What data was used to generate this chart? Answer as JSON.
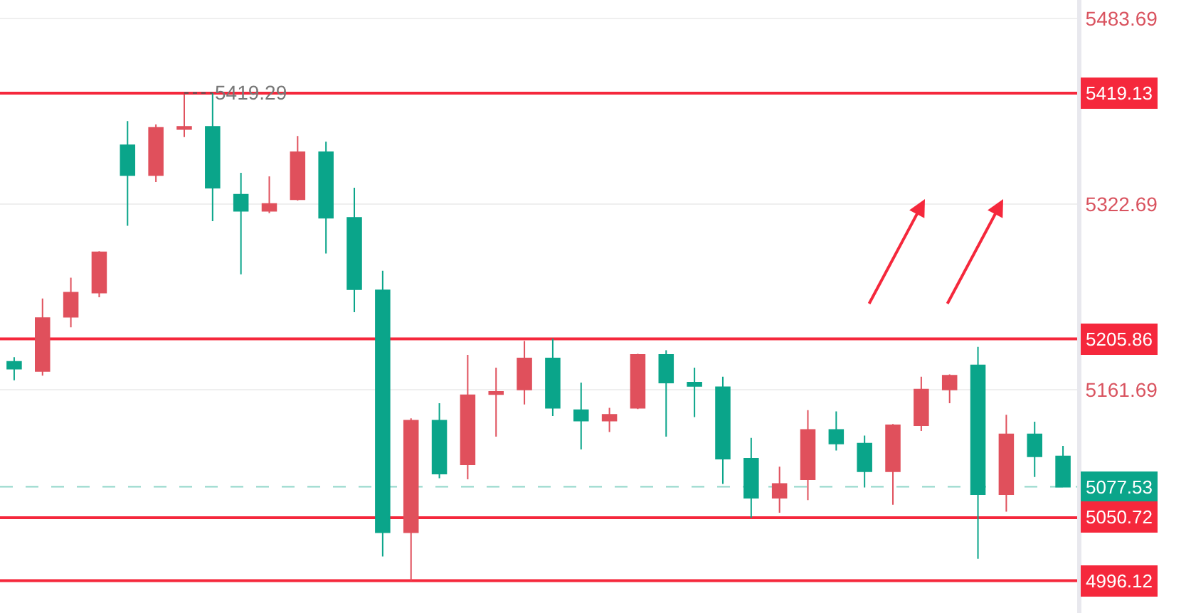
{
  "chart_data": {
    "type": "candlestick",
    "categories": [
      null,
      null,
      null,
      null,
      null,
      null,
      null,
      null,
      null,
      null,
      null,
      null,
      null,
      null,
      null,
      null,
      null,
      null,
      null,
      null,
      null,
      null,
      null,
      null,
      null,
      null,
      null,
      null,
      null,
      null,
      null,
      null,
      null,
      null,
      null,
      null,
      null,
      null
    ],
    "ohlc": [
      [
        5186,
        5190,
        5170,
        5180
      ],
      [
        5178,
        5241,
        5174,
        5224
      ],
      [
        5225,
        5259,
        5216,
        5246
      ],
      [
        5246,
        5282,
        5242,
        5281
      ],
      [
        5374,
        5395,
        5304,
        5348
      ],
      [
        5348,
        5392,
        5342,
        5389
      ],
      [
        5388,
        5418,
        5381,
        5390
      ],
      [
        5390,
        5419.29,
        5308,
        5337
      ],
      [
        5331,
        5350,
        5262,
        5317
      ],
      [
        5317,
        5347,
        5315,
        5323
      ],
      [
        5327,
        5382,
        5326,
        5368
      ],
      [
        5368,
        5377,
        5280,
        5311
      ],
      [
        5311,
        5337,
        5229,
        5249
      ],
      [
        5248,
        5265,
        5017,
        5038
      ],
      [
        5038,
        5137,
        4996.12,
        5135
      ],
      [
        5135,
        5150,
        5085,
        5089
      ],
      [
        5097,
        5192,
        5084,
        5157
      ],
      [
        5158,
        5181,
        5121,
        5160
      ],
      [
        5162,
        5204,
        5149,
        5189
      ],
      [
        5189,
        5206,
        5139,
        5146
      ],
      [
        5144,
        5168,
        5110,
        5135
      ],
      [
        5135,
        5146,
        5125,
        5140
      ],
      [
        5146,
        5193,
        5145,
        5192
      ],
      [
        5192,
        5196,
        5121,
        5168
      ],
      [
        5168,
        5181,
        5138,
        5165
      ],
      [
        5164,
        5173,
        5080,
        5102
      ],
      [
        5102,
        5120,
        5050.72,
        5068
      ],
      [
        5068,
        5095,
        5055,
        5080
      ],
      [
        5084,
        5144,
        5066,
        5127
      ],
      [
        5127,
        5143,
        5109,
        5115
      ],
      [
        5115,
        5122,
        5077,
        5091
      ],
      [
        5091,
        5132,
        5062,
        5131
      ],
      [
        5131,
        5173,
        5126,
        5162
      ],
      [
        5162,
        5175,
        5150,
        5174
      ],
      [
        5183,
        5199,
        5015,
        5071
      ],
      [
        5071,
        5140,
        5056,
        5123
      ],
      [
        5123,
        5134,
        5086,
        5104
      ],
      [
        5104,
        5113,
        5077,
        5077.53
      ]
    ],
    "colors": [
      "#0aa58a",
      "#e0505c",
      "#e0505c",
      "#e0505c",
      "#0aa58a",
      "#e0505c",
      "#e0505c",
      "#0aa58a",
      "#0aa58a",
      "#e0505c",
      "#e0505c",
      "#0aa58a",
      "#0aa58a",
      "#0aa58a",
      "#e0505c",
      "#0aa58a",
      "#e0505c",
      "#e0505c",
      "#e0505c",
      "#0aa58a",
      "#0aa58a",
      "#e0505c",
      "#e0505c",
      "#0aa58a",
      "#0aa58a",
      "#0aa58a",
      "#0aa58a",
      "#e0505c",
      "#e0505c",
      "#0aa58a",
      "#0aa58a",
      "#e0505c",
      "#e0505c",
      "#e0505c",
      "#0aa58a",
      "#e0505c",
      "#0aa58a",
      "#0aa58a"
    ],
    "ylim": [
      4968,
      5500
    ],
    "yticks": [
      5483.69,
      5322.69,
      5161.69
    ],
    "grid": "y",
    "ref_lines": [
      {
        "axis": "y",
        "value": 5419.13,
        "label": "5419.13",
        "color": "#f5283c"
      },
      {
        "axis": "y",
        "value": 5205.86,
        "label": "5205.86",
        "color": "#f5283c"
      },
      {
        "axis": "y",
        "value": 5077.53,
        "label": "5077.53",
        "color": "#0aa58a",
        "line_style": "dashed"
      },
      {
        "axis": "y",
        "value": 5050.72,
        "label": "5050.72",
        "color": "#f5283c"
      },
      {
        "axis": "y",
        "value": 4996.12,
        "label": "4996.12",
        "color": "#f5283c"
      }
    ],
    "annotations": [
      {
        "text": "5419.29",
        "y": 5419.29
      }
    ]
  }
}
